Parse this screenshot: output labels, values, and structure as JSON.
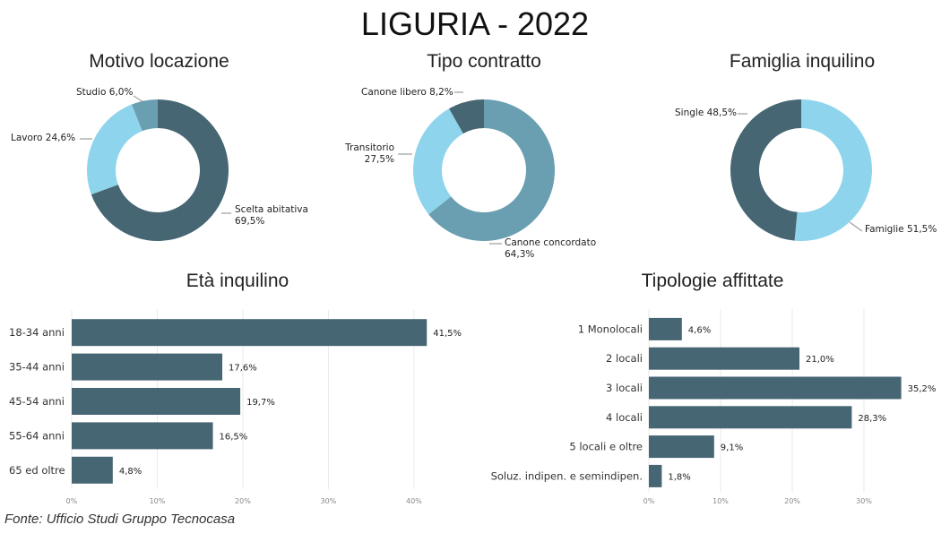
{
  "title": "LIGURIA - 2022",
  "source": "Fonte: Ufficio Studi Gruppo Tecnocasa",
  "colors": {
    "dark": "#466673",
    "light": "#8dd4ec",
    "mid": "#6a9fb2",
    "grid": "#e6e6e6"
  },
  "chart_data": [
    {
      "id": "motivo",
      "type": "pie",
      "title": "Motivo locazione",
      "slices": [
        {
          "label": "Scelta abitativa",
          "value": 69.5,
          "display": "69,5%",
          "color": "#466673"
        },
        {
          "label": "Lavoro",
          "value": 24.6,
          "display": "24,6%",
          "color": "#8dd4ec"
        },
        {
          "label": "Studio",
          "value": 6.0,
          "display": "6,0%",
          "color": "#6a9fb2"
        }
      ]
    },
    {
      "id": "contratto",
      "type": "pie",
      "title": "Tipo contratto",
      "slices": [
        {
          "label": "Canone concordato",
          "value": 64.3,
          "display": "64,3%",
          "color": "#6a9fb2"
        },
        {
          "label": "Transitorio",
          "value": 27.5,
          "display": "27,5%",
          "color": "#8dd4ec"
        },
        {
          "label": "Canone libero",
          "value": 8.2,
          "display": "8,2%",
          "color": "#466673"
        }
      ]
    },
    {
      "id": "famiglia",
      "type": "pie",
      "title": "Famiglia inquilino",
      "slices": [
        {
          "label": "Famiglie",
          "value": 51.5,
          "display": "51,5%",
          "color": "#8dd4ec"
        },
        {
          "label": "Single",
          "value": 48.5,
          "display": "48,5%",
          "color": "#466673"
        }
      ]
    },
    {
      "id": "eta",
      "type": "bar",
      "orientation": "horizontal",
      "title": "Età inquilino",
      "categories": [
        "18-34 anni",
        "35-44 anni",
        "45-54 anni",
        "55-64 anni",
        "65 ed oltre"
      ],
      "values": [
        41.5,
        17.6,
        19.7,
        16.5,
        4.8
      ],
      "value_labels": [
        "41,5%",
        "17,6%",
        "19,7%",
        "16,5%",
        "4,8%"
      ],
      "xlim": [
        0,
        42
      ],
      "ticks": [
        0,
        10,
        20,
        30,
        40
      ],
      "tick_labels": [
        "0%",
        "10%",
        "20%",
        "30%",
        "40%"
      ],
      "grid": true
    },
    {
      "id": "tipologie",
      "type": "bar",
      "orientation": "horizontal",
      "title": "Tipologie affittate",
      "categories": [
        "1 Monolocali",
        "2 locali",
        "3 locali",
        "4 locali",
        "5 locali e oltre",
        "Soluz. indipen. e semindipen."
      ],
      "values": [
        4.6,
        21.0,
        35.2,
        28.3,
        9.1,
        1.8
      ],
      "value_labels": [
        "4,6%",
        "21,0%",
        "35,2%",
        "28,3%",
        "9,1%",
        "1,8%"
      ],
      "xlim": [
        0,
        35.5
      ],
      "ticks": [
        0,
        10,
        20,
        30
      ],
      "tick_labels": [
        "0%",
        "10%",
        "20%",
        "30%"
      ],
      "grid": true
    }
  ]
}
